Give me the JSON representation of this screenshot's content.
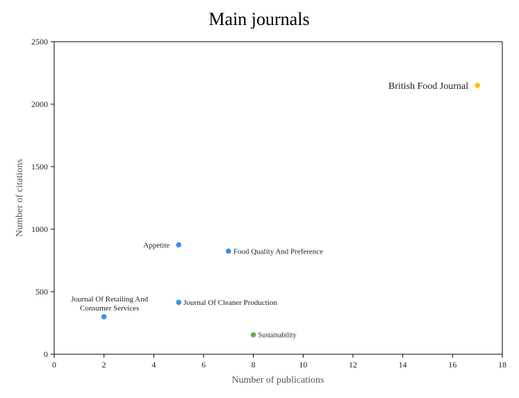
{
  "chart_data": {
    "type": "scatter",
    "title": "Main journals",
    "xlabel": "Number of publications",
    "ylabel": "Number of citations",
    "xlim": [
      0,
      18
    ],
    "ylim": [
      0,
      2500
    ],
    "xticks": [
      0,
      2,
      4,
      6,
      8,
      10,
      12,
      14,
      16,
      18
    ],
    "yticks": [
      0,
      500,
      1000,
      1500,
      2000,
      2500
    ],
    "grid": false,
    "legend": "none",
    "points": [
      {
        "name": "British Food Journal",
        "x": 17,
        "y": 2150,
        "color": "#FFC000",
        "label_lines": [
          "British Food Journal"
        ],
        "label_pos": "left",
        "label_size": 14
      },
      {
        "name": "Appetite",
        "x": 5,
        "y": 875,
        "color": "#3A8FE8",
        "label_lines": [
          "Appetite"
        ],
        "label_pos": "left",
        "label_size": 11
      },
      {
        "name": "Food Quality And Preference",
        "x": 7,
        "y": 825,
        "color": "#3A8FE8",
        "label_lines": [
          "Food Quality And Preference"
        ],
        "label_pos": "right",
        "label_size": 11
      },
      {
        "name": "Journal Of Cleaner Production",
        "x": 5,
        "y": 415,
        "color": "#3A8FE8",
        "label_lines": [
          "Journal Of Cleaner Production"
        ],
        "label_pos": "right",
        "label_size": 11
      },
      {
        "name": "Journal Of Retailing And Consumer Services",
        "x": 2,
        "y": 300,
        "color": "#3A8FE8",
        "label_lines": [
          "Journal Of Retailing And",
          "Consumer Services"
        ],
        "label_pos": "above",
        "label_size": 11
      },
      {
        "name": "Sustainability",
        "x": 8,
        "y": 155,
        "color": "#70AD47",
        "label_lines": [
          "Sustainability"
        ],
        "label_pos": "right",
        "label_size": 10
      }
    ]
  }
}
